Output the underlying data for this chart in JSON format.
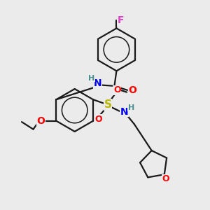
{
  "bg_color": "#ebebeb",
  "bond_color": "#1a1a1a",
  "bond_width": 1.6,
  "atom_colors": {
    "F": "#e040c8",
    "O": "#ff0000",
    "N": "#0000ee",
    "S": "#b8b800",
    "H": "#4a9090"
  },
  "font_size": 9,
  "fig_size": [
    3.0,
    3.0
  ],
  "dpi": 100
}
